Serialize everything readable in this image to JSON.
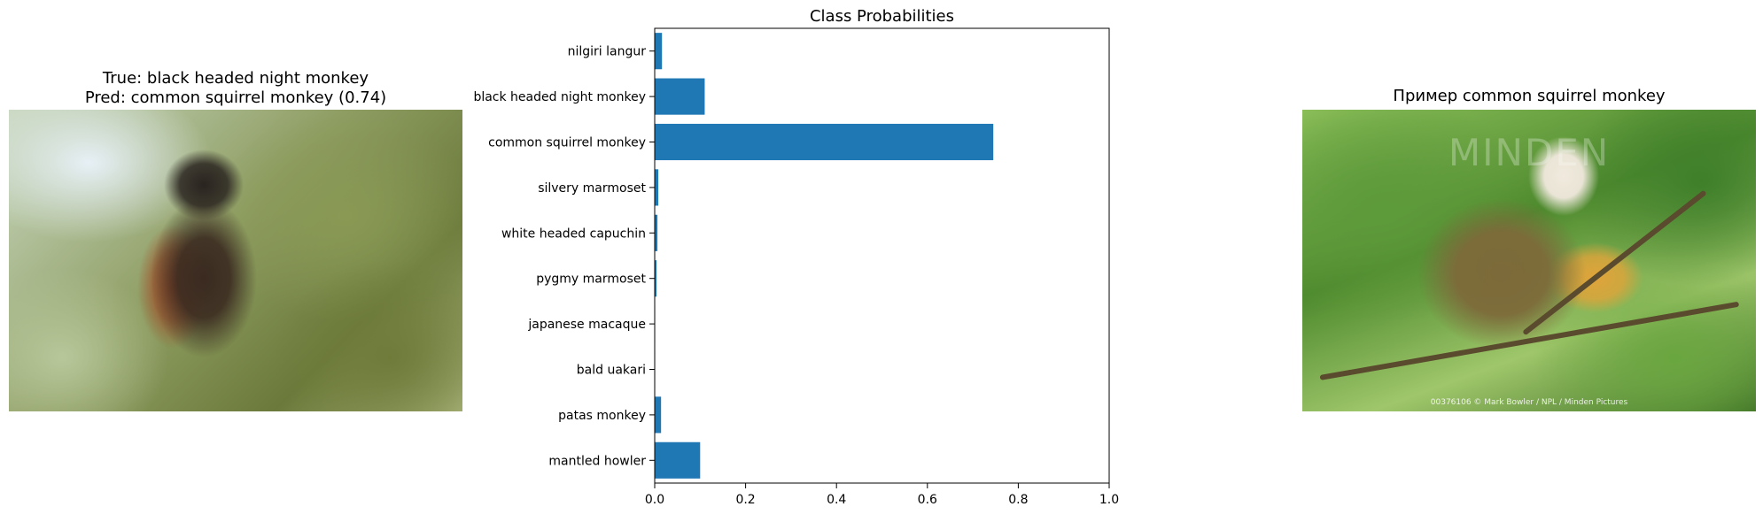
{
  "left_panel": {
    "title_line1": "True: black headed night monkey",
    "title_line2": "Pred: common squirrel monkey (0.74)"
  },
  "right_panel": {
    "title": "Пример common squirrel monkey",
    "watermark": "MINDEN",
    "credit": "00376106 © Mark Bowler / NPL / Minden Pictures"
  },
  "chart_data": {
    "type": "bar",
    "orientation": "horizontal",
    "title": "Class Probabilities",
    "xlabel": "",
    "ylabel": "",
    "xlim": [
      0,
      1.0
    ],
    "xticks": [
      "0.0",
      "0.2",
      "0.4",
      "0.6",
      "0.8",
      "1.0"
    ],
    "categories": [
      "nilgiri langur",
      "black headed night monkey",
      "common squirrel monkey",
      "silvery marmoset",
      "white headed capuchin",
      "pygmy marmoset",
      "japanese macaque",
      "bald uakari",
      "patas monkey",
      "mantled howler"
    ],
    "values": [
      0.016,
      0.11,
      0.745,
      0.008,
      0.006,
      0.004,
      0.001,
      0.001,
      0.014,
      0.1
    ],
    "bar_color": "#1f77b4",
    "grid": false
  }
}
